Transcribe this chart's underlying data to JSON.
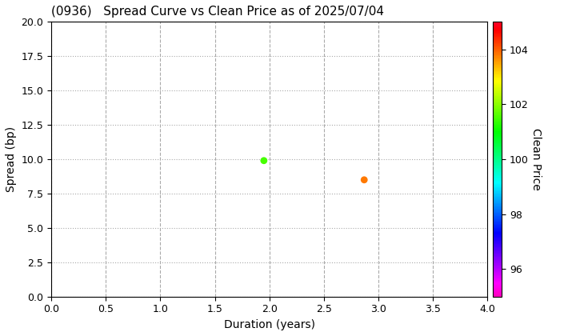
{
  "title": "(0936)   Spread Curve vs Clean Price as of 2025/07/04",
  "xlabel": "Duration (years)",
  "ylabel": "Spread (bp)",
  "colorbar_label": "Clean Price",
  "xlim": [
    0.0,
    4.0
  ],
  "ylim": [
    0.0,
    20.0
  ],
  "xticks": [
    0.0,
    0.5,
    1.0,
    1.5,
    2.0,
    2.5,
    3.0,
    3.5,
    4.0
  ],
  "yticks": [
    0.0,
    2.5,
    5.0,
    7.5,
    10.0,
    12.5,
    15.0,
    17.5,
    20.0
  ],
  "colorbar_ticks": [
    96,
    98,
    100,
    102,
    104
  ],
  "colorbar_vmin": 95.0,
  "colorbar_vmax": 105.0,
  "points": [
    {
      "duration": 1.95,
      "spread": 9.9,
      "price": 101.5
    },
    {
      "duration": 2.87,
      "spread": 8.5,
      "price": 103.8
    }
  ],
  "marker_size": 40,
  "background_color": "#ffffff",
  "grid_color": "#aaaaaa",
  "title_fontsize": 11,
  "axis_fontsize": 10,
  "tick_fontsize": 9,
  "colorbar_fontsize": 10
}
